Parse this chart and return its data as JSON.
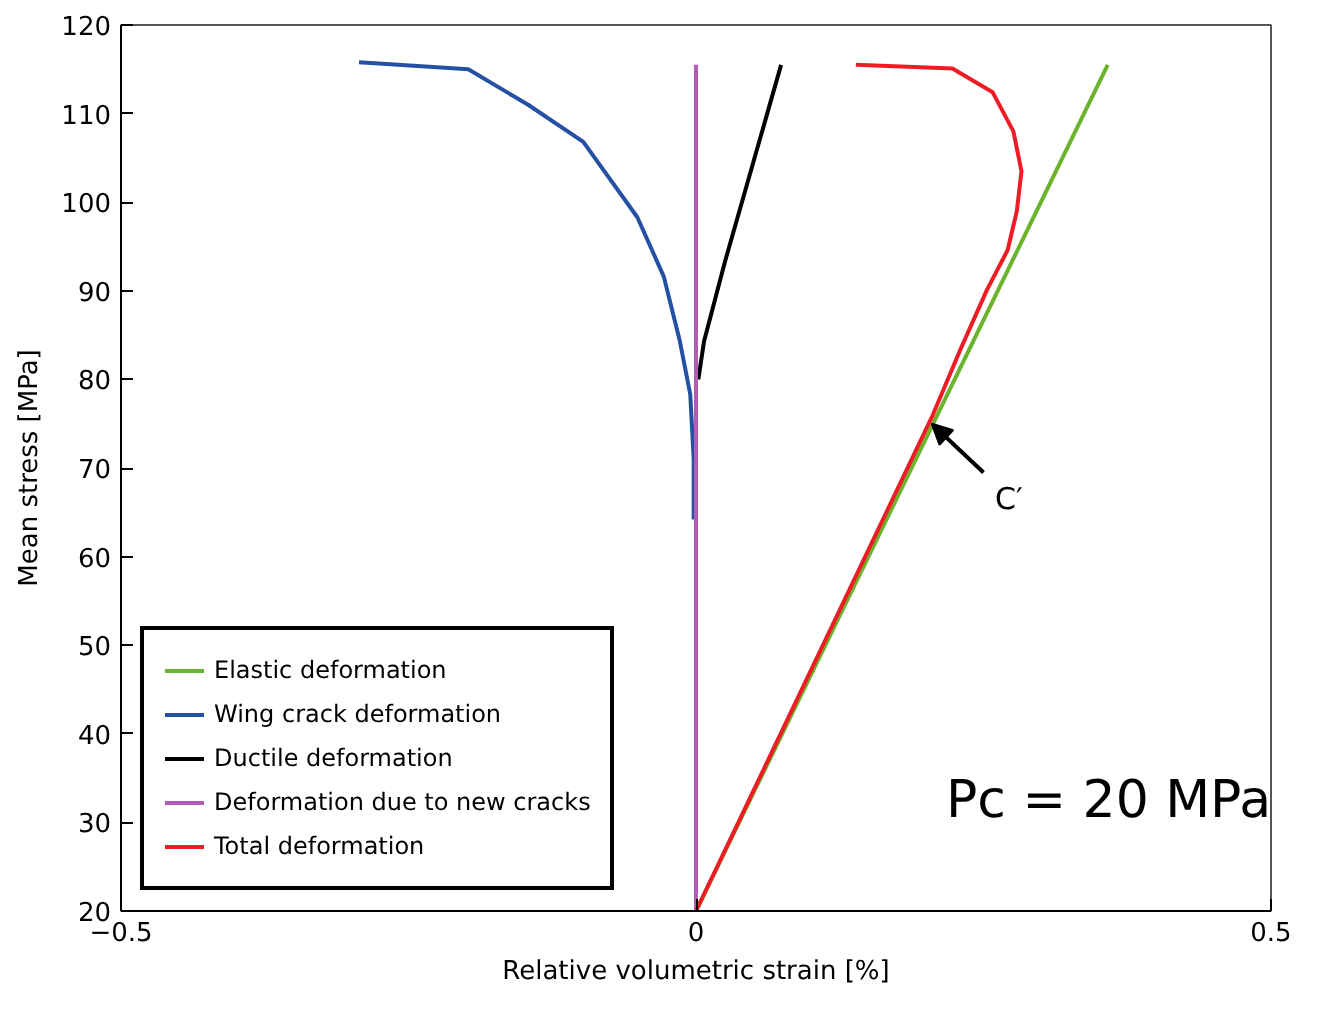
{
  "chart_data": {
    "type": "line",
    "xlabel": "Relative volumetric strain [%]",
    "ylabel": "Mean stress [MPa]",
    "xlim": [
      -0.5,
      0.5
    ],
    "xticks": [
      -0.5,
      0,
      0.5
    ],
    "ylim": [
      20,
      120
    ],
    "yticks": [
      20,
      30,
      40,
      50,
      60,
      70,
      80,
      90,
      100,
      110,
      120
    ],
    "grid": false,
    "legend": "bottom left",
    "series": [
      {
        "name": "Elastic deformation",
        "color": "#6ab42d",
        "x": [
          0,
          0.358
        ],
        "values": [
          20,
          115.5
        ]
      },
      {
        "name": "Wing crack deformation",
        "color": "#2451a4",
        "x": [
          -0.293,
          -0.198,
          -0.146,
          -0.098,
          -0.051,
          -0.028,
          -0.014,
          -0.005,
          -0.002,
          -0.002
        ],
        "values": [
          115.8,
          115,
          111,
          106.8,
          98.3,
          91.6,
          84.3,
          78.3,
          71,
          64.2
        ]
      },
      {
        "name": "Ductile deformation",
        "color": "#000000",
        "x": [
          0.002,
          0.007,
          0.025,
          0.074
        ],
        "values": [
          80,
          84.3,
          93.2,
          115.5
        ]
      },
      {
        "name": "Deformation due to new cracks",
        "color": "#b35cb5",
        "x": [
          0,
          0
        ],
        "values": [
          20,
          115.5
        ]
      },
      {
        "name": "Total deformation",
        "color": "#ee1c24",
        "x": [
          0,
          0.206,
          0.23,
          0.253,
          0.271,
          0.279,
          0.283,
          0.276,
          0.258,
          0.223,
          0.139
        ],
        "values": [
          20,
          76,
          83.4,
          90.1,
          94.6,
          99,
          103.5,
          108,
          112.4,
          115.1,
          115.5
        ]
      }
    ],
    "annotations": [
      {
        "text": "C′",
        "x": 0.205,
        "y": 75
      },
      "Pc = 20 MPa"
    ]
  }
}
